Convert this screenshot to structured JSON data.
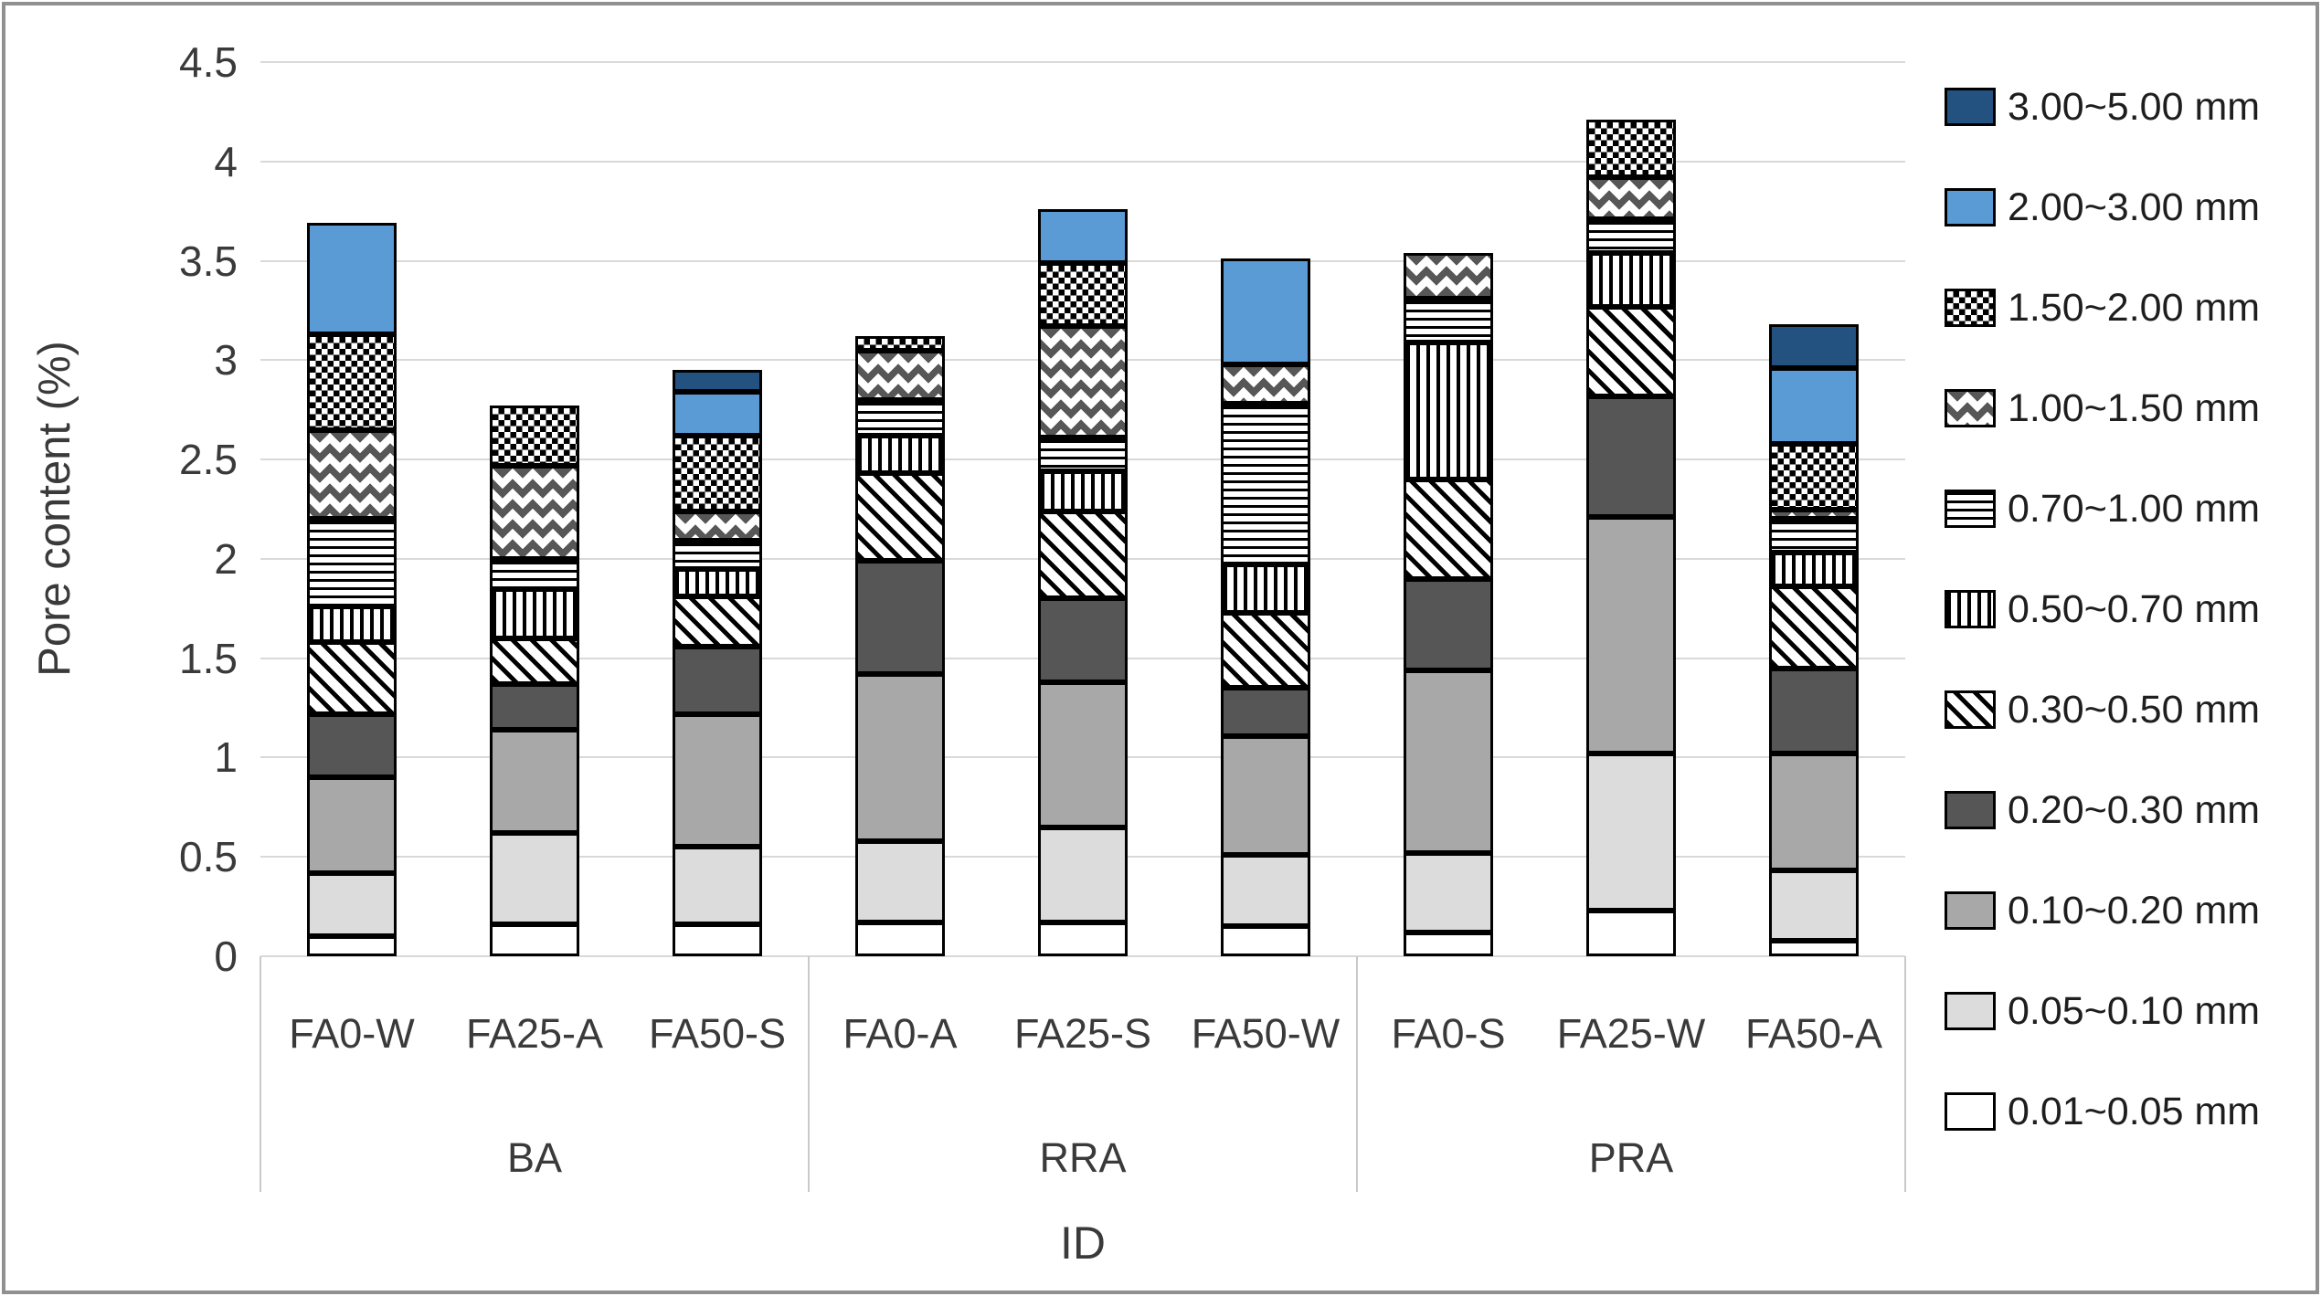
{
  "chart_data": {
    "type": "bar",
    "stacked": true,
    "title": "",
    "xlabel": "ID",
    "ylabel": "Pore content (%)",
    "ylim": [
      0,
      4.5
    ],
    "ytick_step": 0.5,
    "yticks": [
      "4.5",
      "4",
      "3.5",
      "3",
      "2.5",
      "2",
      "1.5",
      "1",
      "0.5",
      "0"
    ],
    "grid": true,
    "legend_position": "right",
    "groups": [
      {
        "label": "BA",
        "categories": [
          "FA0-W",
          "FA25-A",
          "FA50-S"
        ]
      },
      {
        "label": "RRA",
        "categories": [
          "FA0-A",
          "FA25-S",
          "FA50-W"
        ]
      },
      {
        "label": "PRA",
        "categories": [
          "FA0-S",
          "FA25-W",
          "FA50-A"
        ]
      }
    ],
    "categories": [
      "FA0-W",
      "FA25-A",
      "FA50-S",
      "FA0-A",
      "FA25-S",
      "FA50-W",
      "FA0-S",
      "FA25-W",
      "FA50-A"
    ],
    "series_bottom_to_top": [
      {
        "name": "0.01~0.05 mm",
        "pattern": "solid",
        "color": "#FFFFFF",
        "values": [
          0.1,
          0.16,
          0.16,
          0.17,
          0.17,
          0.15,
          0.12,
          0.23,
          0.08
        ]
      },
      {
        "name": "0.05~0.10 mm",
        "pattern": "solid",
        "color": "#DCDCDC",
        "values": [
          0.32,
          0.46,
          0.39,
          0.41,
          0.48,
          0.36,
          0.4,
          0.79,
          0.35
        ]
      },
      {
        "name": "0.10~0.20 mm",
        "pattern": "solid",
        "color": "#A8A8A8",
        "values": [
          0.48,
          0.52,
          0.67,
          0.84,
          0.73,
          0.6,
          0.92,
          1.19,
          0.59
        ]
      },
      {
        "name": "0.20~0.30 mm",
        "pattern": "solid",
        "color": "#565656",
        "values": [
          0.32,
          0.23,
          0.34,
          0.57,
          0.42,
          0.24,
          0.46,
          0.61,
          0.43
        ]
      },
      {
        "name": "0.30~0.50 mm",
        "pattern": "diagonal-stripes",
        "color": "#000000",
        "values": [
          0.36,
          0.23,
          0.25,
          0.44,
          0.44,
          0.38,
          0.5,
          0.45,
          0.41
        ]
      },
      {
        "name": "0.50~0.70 mm",
        "pattern": "vertical-stripes",
        "color": "#000000",
        "values": [
          0.18,
          0.25,
          0.14,
          0.19,
          0.2,
          0.24,
          0.69,
          0.27,
          0.17
        ]
      },
      {
        "name": "0.70~1.00 mm",
        "pattern": "horizontal-stripes",
        "color": "#000000",
        "values": [
          0.44,
          0.15,
          0.14,
          0.18,
          0.17,
          0.81,
          0.22,
          0.17,
          0.17
        ]
      },
      {
        "name": "1.00~1.50 mm",
        "pattern": "diamonds",
        "color": "#575757",
        "values": [
          0.45,
          0.47,
          0.15,
          0.25,
          0.56,
          0.2,
          0.23,
          0.21,
          0.05
        ]
      },
      {
        "name": "1.50~2.00 mm",
        "pattern": "checkerboard",
        "color": "#000000",
        "values": [
          0.48,
          0.3,
          0.38,
          0.07,
          0.32,
          0,
          0,
          0.29,
          0.33
        ]
      },
      {
        "name": "2.00~3.00 mm",
        "pattern": "solid",
        "color": "#5B9BD5",
        "values": [
          0.56,
          0,
          0.22,
          0,
          0.27,
          0.53,
          0,
          0,
          0.38
        ]
      },
      {
        "name": "3.00~5.00 mm",
        "pattern": "solid",
        "color": "#235280",
        "values": [
          0,
          0,
          0.11,
          0,
          0,
          0,
          0,
          0,
          0.22
        ]
      }
    ],
    "totals": [
      3.69,
      2.77,
      2.95,
      3.12,
      3.76,
      3.51,
      3.54,
      4.21,
      3.18
    ],
    "palette": {
      "gridline": "#D9D9D9",
      "axis_text": "#3A3A3A",
      "frame": "#909090",
      "bar_border": "#000000",
      "light_blue": "#5B9BD5",
      "dark_blue": "#235280"
    }
  }
}
